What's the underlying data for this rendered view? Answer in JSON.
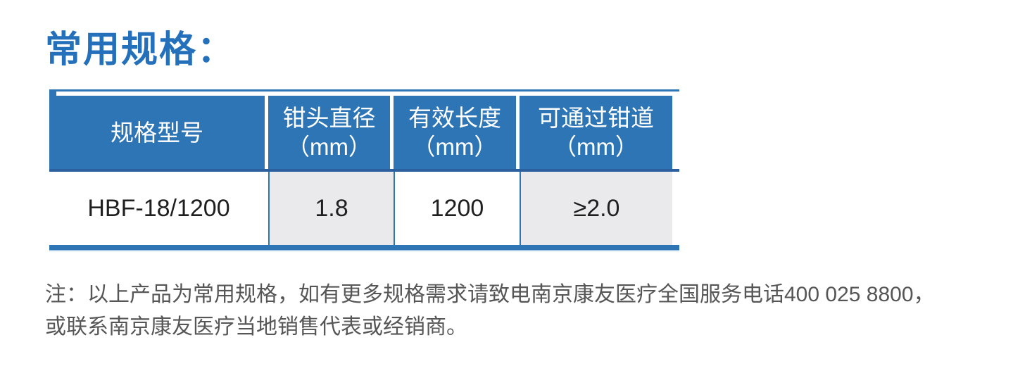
{
  "title": "常用规格：",
  "table": {
    "columns": [
      {
        "label": "规格型号",
        "unit": ""
      },
      {
        "label": "钳头直径",
        "unit": "（mm）"
      },
      {
        "label": "有效长度",
        "unit": "（mm）"
      },
      {
        "label": "可通过钳道",
        "unit": "（mm）"
      }
    ],
    "rows": [
      {
        "model": "HBF-18/1200",
        "head_diameter_mm": "1.8",
        "effective_length_mm": "1200",
        "channel_mm": "≥2.0"
      }
    ]
  },
  "note": {
    "line1": "注：以上产品为常用规格，如有更多规格需求请致电南京康友医疗全国服务电话400 025 8800，",
    "line2": "或联系南京康友医疗当地销售代表或经销商。"
  },
  "colors": {
    "title_blue": "#2470BA",
    "header_blue": "#2E75B6",
    "divider_blue": "#2B5F9E",
    "cell_gray": "#EAEAED",
    "bottom_light_blue": "#AECBE8",
    "note_gray": "#565656"
  }
}
